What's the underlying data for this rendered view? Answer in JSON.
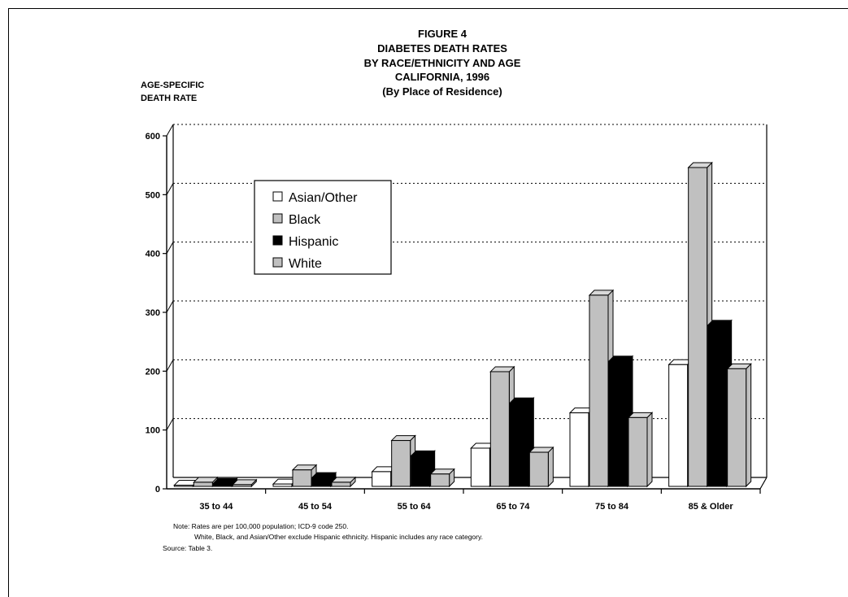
{
  "chart_data": {
    "type": "bar",
    "title_lines": [
      "FIGURE 4",
      "DIABETES DEATH RATES",
      "BY RACE/ETHNICITY AND AGE",
      "CALIFORNIA, 1996",
      "(By Place of Residence)"
    ],
    "ylabel_lines": [
      "AGE-SPECIFIC",
      "DEATH RATE"
    ],
    "categories": [
      "35 to 44",
      "45 to 54",
      "55 to 64",
      "65 to 74",
      "75 to 84",
      "85 & Older"
    ],
    "series": [
      {
        "name": "Asian/Other",
        "color": "#ffffff",
        "values": [
          2,
          4,
          25,
          65,
          125,
          207
        ]
      },
      {
        "name": "Black",
        "color": "#c0c0c0",
        "values": [
          7,
          28,
          78,
          195,
          325,
          542
        ]
      },
      {
        "name": "Hispanic",
        "color": "#000000",
        "values": [
          5,
          15,
          52,
          142,
          213,
          274
        ]
      },
      {
        "name": "White",
        "color": "#c0c0c0",
        "values": [
          3,
          7,
          21,
          58,
          117,
          200
        ]
      }
    ],
    "yticks": [
      0,
      100,
      200,
      300,
      400,
      500,
      600
    ],
    "ylim": [
      0,
      600
    ],
    "grid": true,
    "legend_position": "upper-left",
    "notes": [
      "Note:  Rates are per 100,000 population;  ICD-9 code 250.",
      "White, Black, and Asian/Other exclude Hispanic ethnicity.  Hispanic includes any race category.",
      "Source:  Table 3."
    ]
  }
}
